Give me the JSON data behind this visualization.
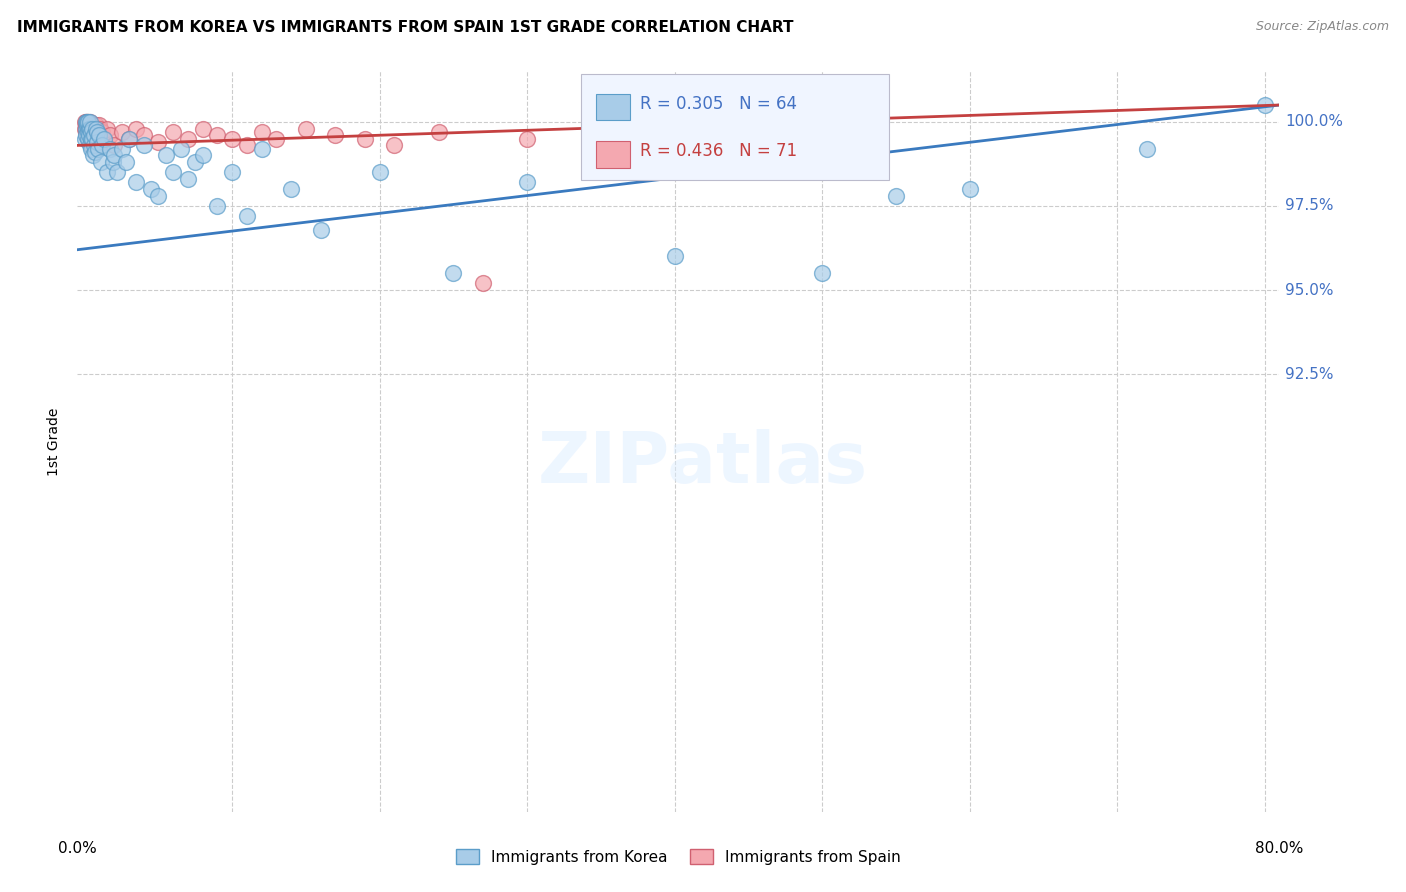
{
  "title": "IMMIGRANTS FROM KOREA VS IMMIGRANTS FROM SPAIN 1ST GRADE CORRELATION CHART",
  "source": "Source: ZipAtlas.com",
  "ylabel": "1st Grade",
  "korea_R": 0.305,
  "korea_N": 64,
  "spain_R": 0.436,
  "spain_N": 71,
  "korea_color": "#a8cce8",
  "spain_color": "#f4a8b0",
  "korea_edge_color": "#5b9dc9",
  "spain_edge_color": "#d06070",
  "korea_line_color": "#3a7abf",
  "spain_line_color": "#c44040",
  "ymin": 79.5,
  "ymax": 101.5,
  "xmin": -0.5,
  "xmax": 81.0,
  "ytick_vals": [
    92.5,
    95.0,
    97.5,
    100.0
  ],
  "ytick_labels": [
    "92.5%",
    "95.0%",
    "97.5%",
    "100.0%"
  ],
  "xtick_vals": [
    0,
    10,
    20,
    30,
    40,
    50,
    60,
    70,
    80
  ],
  "korea_x": [
    0.05,
    0.08,
    0.1,
    0.12,
    0.15,
    0.18,
    0.2,
    0.22,
    0.25,
    0.28,
    0.3,
    0.33,
    0.35,
    0.38,
    0.4,
    0.42,
    0.45,
    0.48,
    0.5,
    0.55,
    0.6,
    0.65,
    0.7,
    0.75,
    0.8,
    0.85,
    0.9,
    1.0,
    1.1,
    1.2,
    1.3,
    1.5,
    1.7,
    1.9,
    2.0,
    2.2,
    2.5,
    2.8,
    3.0,
    3.5,
    4.0,
    4.5,
    5.0,
    5.5,
    6.0,
    6.5,
    7.0,
    7.5,
    8.0,
    9.0,
    10.0,
    11.0,
    12.0,
    14.0,
    16.0,
    20.0,
    25.0,
    30.0,
    40.0,
    50.0,
    55.0,
    60.0,
    72.0,
    80.0
  ],
  "korea_y": [
    99.5,
    99.8,
    100.0,
    99.6,
    99.9,
    100.0,
    99.7,
    99.5,
    100.0,
    99.8,
    99.6,
    99.3,
    99.8,
    100.0,
    99.5,
    99.7,
    99.2,
    99.8,
    99.5,
    99.0,
    99.3,
    99.6,
    99.1,
    99.8,
    99.4,
    99.7,
    99.2,
    99.6,
    98.8,
    99.3,
    99.5,
    98.5,
    99.2,
    98.8,
    99.0,
    98.5,
    99.2,
    98.8,
    99.5,
    98.2,
    99.3,
    98.0,
    97.8,
    99.0,
    98.5,
    99.2,
    98.3,
    98.8,
    99.0,
    97.5,
    98.5,
    97.2,
    99.2,
    98.0,
    96.8,
    98.5,
    95.5,
    98.2,
    96.0,
    95.5,
    97.8,
    98.0,
    99.2,
    100.5
  ],
  "spain_x": [
    0.02,
    0.04,
    0.06,
    0.08,
    0.1,
    0.12,
    0.14,
    0.15,
    0.17,
    0.2,
    0.22,
    0.25,
    0.27,
    0.3,
    0.32,
    0.35,
    0.37,
    0.4,
    0.42,
    0.45,
    0.47,
    0.5,
    0.52,
    0.55,
    0.58,
    0.6,
    0.62,
    0.65,
    0.68,
    0.7,
    0.72,
    0.75,
    0.78,
    0.8,
    0.82,
    0.85,
    0.88,
    0.9,
    0.92,
    0.95,
    1.0,
    1.05,
    1.1,
    1.15,
    1.2,
    1.3,
    1.5,
    1.7,
    2.0,
    2.5,
    3.0,
    3.5,
    4.0,
    5.0,
    6.0,
    7.0,
    8.0,
    9.0,
    10.0,
    11.0,
    12.0,
    13.0,
    15.0,
    17.0,
    19.0,
    21.0,
    24.0,
    27.0,
    30.0,
    35.0,
    50.0
  ],
  "spain_y": [
    100.0,
    99.8,
    99.9,
    100.0,
    99.7,
    99.9,
    100.0,
    99.8,
    99.6,
    100.0,
    99.8,
    99.5,
    99.7,
    99.9,
    99.6,
    100.0,
    99.8,
    99.5,
    99.7,
    99.3,
    99.8,
    99.5,
    99.7,
    99.9,
    99.6,
    99.8,
    99.4,
    99.7,
    99.5,
    99.8,
    99.6,
    99.9,
    99.5,
    99.7,
    99.3,
    99.6,
    99.8,
    99.5,
    99.7,
    99.9,
    99.5,
    99.8,
    99.6,
    99.4,
    99.7,
    99.5,
    99.8,
    99.6,
    99.3,
    99.7,
    99.5,
    99.8,
    99.6,
    99.4,
    99.7,
    99.5,
    99.8,
    99.6,
    99.5,
    99.3,
    99.7,
    99.5,
    99.8,
    99.6,
    99.5,
    99.3,
    99.7,
    95.2,
    99.5,
    99.8,
    99.6
  ]
}
